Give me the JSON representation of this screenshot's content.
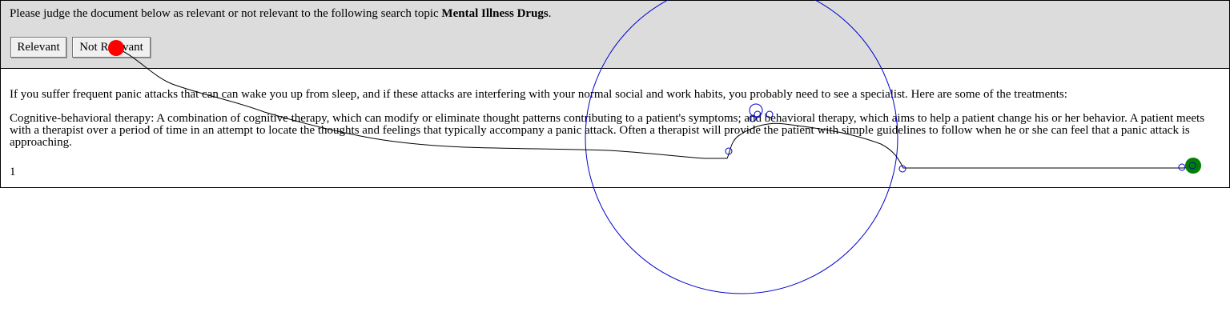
{
  "judge": {
    "instruction_prefix": "Please judge the document below as relevant or not relevant to the following search topic ",
    "topic": "Mental Illness Drugs",
    "instruction_suffix": ".",
    "relevant_label": "Relevant",
    "not_relevant_label": "Not Relevant"
  },
  "document": {
    "paragraphs": [
      "If you suffer frequent panic attacks that can can wake you up from sleep, and if these attacks are interfering with your normal social and work habits, you probably need to see a specialist. Here are some of the treatments:",
      "Cognitive-behavioral therapy: A combination of cognitive therapy, which can modify or eliminate thought patterns contributing to a patient's symptoms; and behavioral therapy, which aims to help a patient change his or her behavior. A patient meets with a therapist over a period of time in an attempt to locate the thoughts and feelings that typically accompany a panic attack. Often a therapist will provide the patient with simple guidelines to follow when he or she can feel that a panic attack is approaching."
    ],
    "page_number": "1"
  },
  "colors": {
    "panel_bg": "#dcdcdc",
    "trace_line": "#000000",
    "fixation_circle": "#0000cc",
    "click_marker": "#ff0000",
    "end_marker": "#008000"
  }
}
